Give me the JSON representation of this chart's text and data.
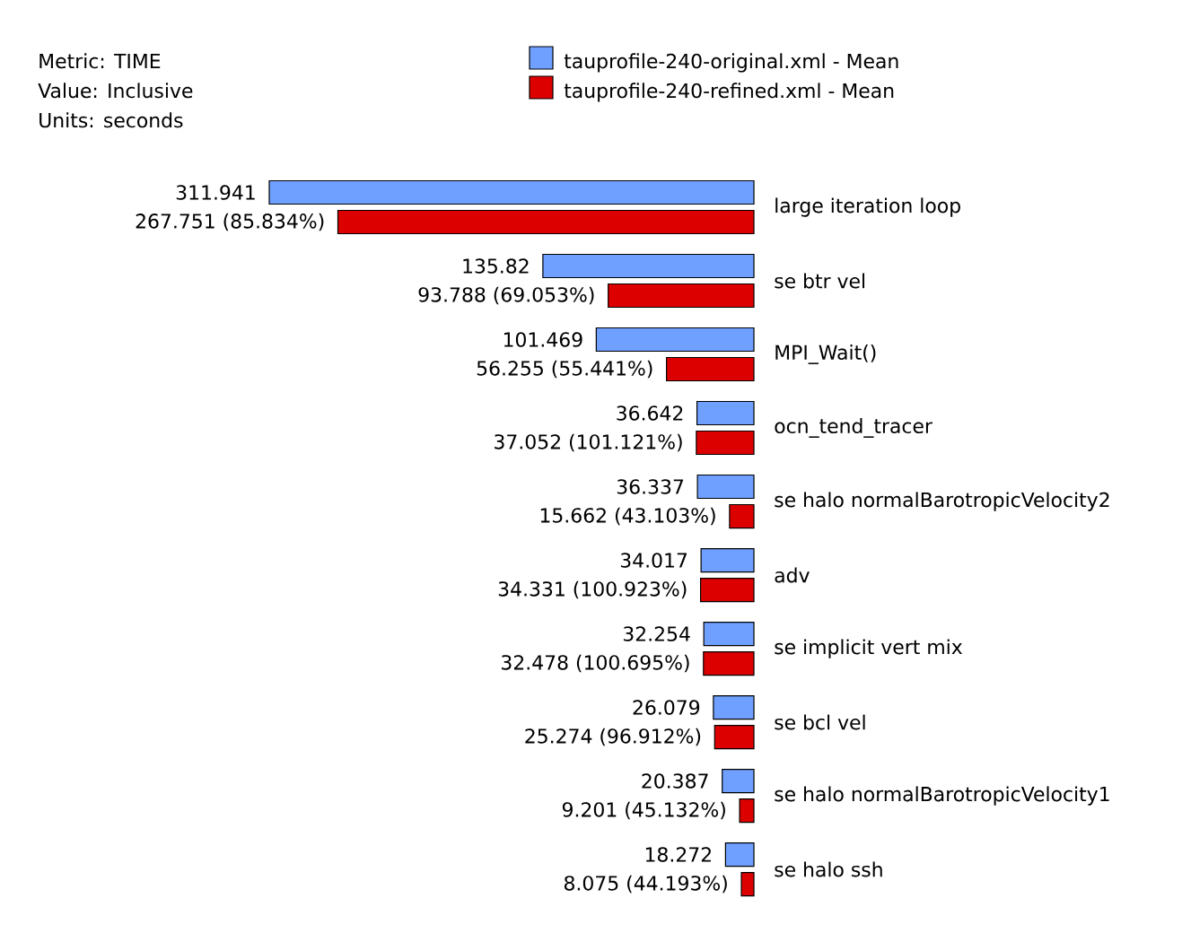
{
  "chart_data": {
    "type": "bar",
    "orientation": "horizontal",
    "annotations": [
      "Metric: TIME",
      "Value: Inclusive",
      "Units: seconds"
    ],
    "categories": [
      "large iteration loop",
      "se btr vel",
      "MPI_Wait()",
      "ocn_tend_tracer",
      "se halo normalBarotropicVelocity2",
      "adv",
      "se implicit vert mix",
      "se bcl vel",
      "se halo normalBarotropicVelocity1",
      "se halo ssh"
    ],
    "series": [
      {
        "name": "tauprofile-240-original.xml - Mean",
        "color": "#6fa0ff",
        "values": [
          311.941,
          135.82,
          101.469,
          36.642,
          36.337,
          34.017,
          32.254,
          26.079,
          20.387,
          18.272
        ],
        "value_labels": [
          "311.941",
          "135.82",
          "101.469",
          "36.642",
          "36.337",
          "34.017",
          "32.254",
          "26.079",
          "20.387",
          "18.272"
        ]
      },
      {
        "name": "tauprofile-240-refined.xml - Mean",
        "color": "#dd0000",
        "values": [
          267.751,
          93.788,
          56.255,
          37.052,
          15.662,
          34.331,
          32.478,
          25.274,
          9.201,
          8.075
        ],
        "value_labels": [
          "267.751 (85.834%)",
          "93.788 (69.053%)",
          "56.255 (55.441%)",
          "37.052 (101.121%)",
          "15.662 (43.103%)",
          "34.331 (100.923%)",
          "32.478 (100.695%)",
          "25.274 (96.912%)",
          "9.201 (45.132%)",
          "8.075 (44.193%)"
        ]
      }
    ],
    "legend": "top"
  }
}
